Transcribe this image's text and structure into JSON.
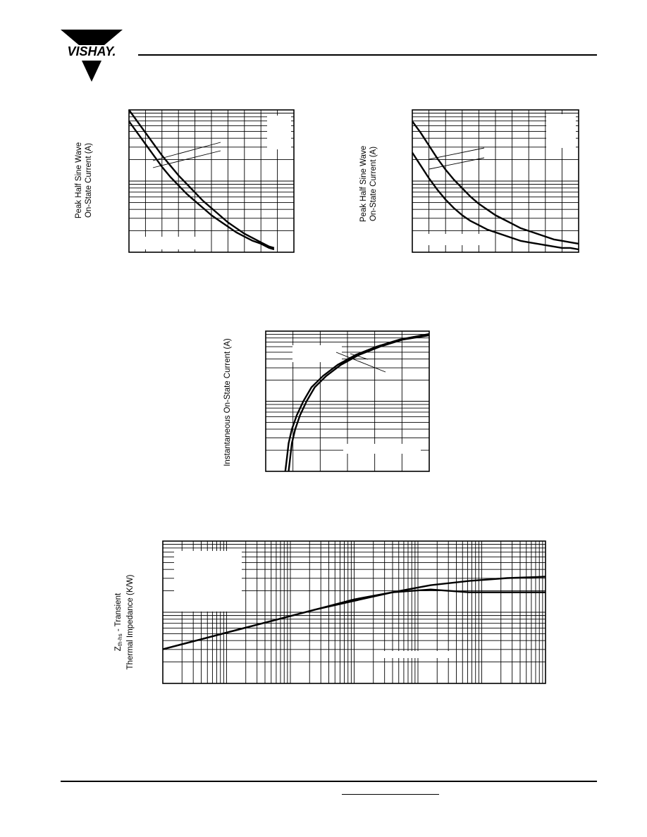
{
  "header": {
    "logo": {
      "text": "VISHAY.",
      "colors": {
        "ink": "#000000",
        "paper": "#ffffff"
      }
    }
  },
  "figures": {
    "fig1": {
      "ylabel_line1": "Peak Half Sine Wave",
      "ylabel_line2": "On-State Current (A)"
    },
    "fig2": {
      "ylabel_line1": "Peak Half Sine Wave",
      "ylabel_line2": "On-State Current (A)"
    },
    "fig3": {
      "ylabel": "Instantaneous On-State Current (A)"
    },
    "fig4": {
      "ylabel_sym": "Z",
      "ylabel_sub": "th-hs",
      "ylabel_rest": " - Transient",
      "ylabel_line2": "Thermal Impedance (K/W)"
    }
  },
  "chart_data": [
    {
      "type": "line",
      "id": "fig1",
      "title": "",
      "xlabel": "",
      "ylabel": "Peak Half Sine Wave On-State Current (A)",
      "y_scale": "log",
      "series": [
        {
          "x": [
            0.0,
            0.05,
            0.1,
            0.15,
            0.2,
            0.25,
            0.3,
            0.35,
            0.4,
            0.45,
            0.5,
            0.55,
            0.6,
            0.65,
            0.7,
            0.75,
            0.8,
            0.85,
            0.88
          ],
          "y": [
            1.0,
            0.92,
            0.84,
            0.76,
            0.68,
            0.61,
            0.54,
            0.48,
            0.42,
            0.36,
            0.31,
            0.26,
            0.21,
            0.17,
            0.13,
            0.1,
            0.07,
            0.04,
            0.03
          ]
        },
        {
          "x": [
            0.0,
            0.05,
            0.1,
            0.15,
            0.2,
            0.25,
            0.3,
            0.35,
            0.4,
            0.45,
            0.5,
            0.55,
            0.6,
            0.65,
            0.7,
            0.75,
            0.8,
            0.85,
            0.88
          ],
          "y": [
            0.92,
            0.84,
            0.76,
            0.68,
            0.6,
            0.53,
            0.47,
            0.41,
            0.36,
            0.31,
            0.26,
            0.22,
            0.18,
            0.14,
            0.11,
            0.08,
            0.06,
            0.03,
            0.02
          ]
        }
      ],
      "grid": true,
      "legend": "none",
      "label_boxes": [
        "top-right",
        "bottom-left"
      ]
    },
    {
      "type": "line",
      "id": "fig2",
      "title": "",
      "xlabel": "",
      "ylabel": "Peak Half Sine Wave On-State Current (A)",
      "y_scale": "log",
      "series": [
        {
          "x": [
            0.0,
            0.05,
            0.1,
            0.15,
            0.2,
            0.25,
            0.3,
            0.35,
            0.4,
            0.45,
            0.5,
            0.55,
            0.6,
            0.65,
            0.7,
            0.75,
            0.8,
            0.85,
            0.9,
            0.95,
            1.0
          ],
          "y": [
            0.92,
            0.84,
            0.75,
            0.66,
            0.58,
            0.51,
            0.45,
            0.39,
            0.34,
            0.3,
            0.26,
            0.23,
            0.2,
            0.17,
            0.15,
            0.13,
            0.11,
            0.09,
            0.08,
            0.07,
            0.06
          ]
        },
        {
          "x": [
            0.0,
            0.05,
            0.1,
            0.15,
            0.2,
            0.25,
            0.3,
            0.35,
            0.4,
            0.45,
            0.5,
            0.55,
            0.6,
            0.65,
            0.7,
            0.75,
            0.8,
            0.85,
            0.9,
            0.95,
            1.0
          ],
          "y": [
            0.7,
            0.61,
            0.52,
            0.44,
            0.37,
            0.31,
            0.26,
            0.22,
            0.19,
            0.16,
            0.14,
            0.12,
            0.1,
            0.08,
            0.07,
            0.06,
            0.05,
            0.04,
            0.03,
            0.03,
            0.02
          ]
        }
      ],
      "grid": true,
      "legend": "none",
      "label_boxes": [
        "top-right",
        "bottom-left"
      ]
    },
    {
      "type": "line",
      "id": "fig3",
      "title": "",
      "xlabel": "",
      "ylabel": "Instantaneous On-State Current (A)",
      "y_scale": "log",
      "series": [
        {
          "x": [
            0.12,
            0.13,
            0.14,
            0.16,
            0.19,
            0.23,
            0.28,
            0.35,
            0.44,
            0.55,
            0.68,
            0.82,
            1.0
          ],
          "y": [
            0.0,
            0.1,
            0.2,
            0.3,
            0.4,
            0.5,
            0.6,
            0.68,
            0.76,
            0.83,
            0.89,
            0.94,
            0.98
          ]
        },
        {
          "x": [
            0.14,
            0.15,
            0.16,
            0.18,
            0.21,
            0.25,
            0.3,
            0.37,
            0.46,
            0.57,
            0.7,
            0.84,
            1.0
          ],
          "y": [
            0.0,
            0.1,
            0.2,
            0.3,
            0.4,
            0.5,
            0.6,
            0.68,
            0.76,
            0.83,
            0.89,
            0.94,
            0.97
          ]
        }
      ],
      "grid": true,
      "legend": "none",
      "label_boxes": [
        "top-left",
        "bottom-right"
      ]
    },
    {
      "type": "line",
      "id": "fig4",
      "title": "",
      "xlabel": "",
      "ylabel": "Zth-hs - Transient Thermal Impedance (K/W)",
      "x_scale": "log",
      "y_scale": "log",
      "series": [
        {
          "x": [
            0.0,
            0.1,
            0.2,
            0.3,
            0.4,
            0.5,
            0.6,
            0.7,
            0.8,
            0.9,
            1.0
          ],
          "y": [
            0.24,
            0.31,
            0.38,
            0.45,
            0.52,
            0.58,
            0.64,
            0.69,
            0.72,
            0.74,
            0.75
          ]
        },
        {
          "x": [
            0.0,
            0.1,
            0.2,
            0.3,
            0.4,
            0.5,
            0.6,
            0.7,
            0.8,
            0.9,
            1.0
          ],
          "y": [
            0.24,
            0.31,
            0.38,
            0.45,
            0.52,
            0.59,
            0.64,
            0.66,
            0.64,
            0.64,
            0.64
          ]
        }
      ],
      "grid": true,
      "legend": "none",
      "label_boxes": [
        "top-left",
        "bottom-right"
      ]
    }
  ]
}
